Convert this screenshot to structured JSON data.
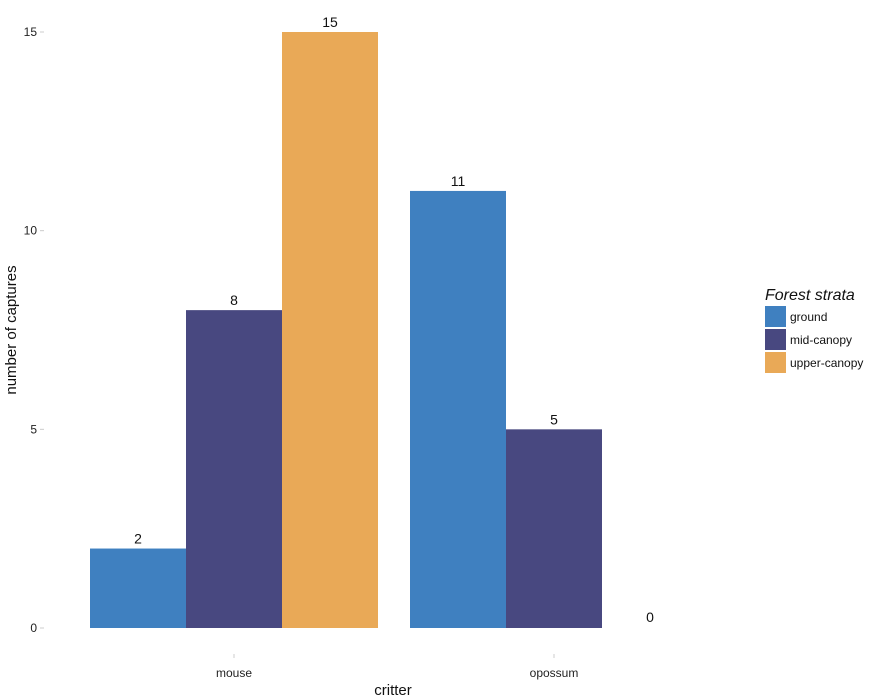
{
  "chart_data": {
    "type": "bar",
    "categories": [
      "mouse",
      "opossum"
    ],
    "series": [
      {
        "name": "ground",
        "color": "#3f80c0",
        "values": [
          2,
          11
        ]
      },
      {
        "name": "mid-canopy",
        "color": "#484880",
        "values": [
          8,
          5
        ]
      },
      {
        "name": "upper-canopy",
        "color": "#e9a957",
        "values": [
          15,
          0
        ]
      }
    ],
    "xlabel": "critter",
    "ylabel": "number of captures",
    "ylim": [
      0,
      15
    ],
    "yticks": [
      0,
      5,
      10,
      15
    ],
    "grid": false,
    "legend": {
      "title": "Forest strata",
      "position": "right"
    },
    "data_labels": true
  }
}
